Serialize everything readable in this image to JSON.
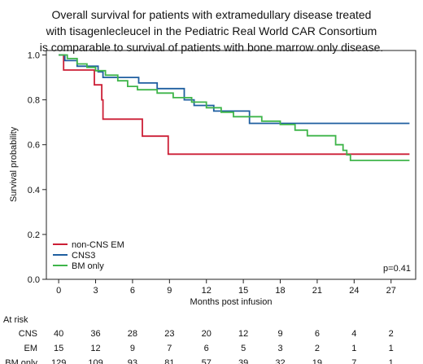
{
  "figure": {
    "title_lines": [
      "Overall survival for patients with extramedullary disease treated",
      "with tisagenlecleucel in the Pediatric Real World CAR Consortium",
      "is comparable to survival of patients with bone marrow only disease."
    ]
  },
  "chart_data": {
    "type": "line",
    "step": true,
    "xlabel": "Months post infusion",
    "ylabel": "Survival probability",
    "xlim": [
      -1,
      29
    ],
    "ylim": [
      0,
      1.02
    ],
    "xticks": [
      0,
      3,
      6,
      9,
      12,
      15,
      18,
      21,
      24,
      27
    ],
    "yticks": [
      0.0,
      0.2,
      0.4,
      0.6,
      0.8,
      1.0
    ],
    "annotation": "p=0.41",
    "legend_position": "bottom-left",
    "series": [
      {
        "name": "non-CNS EM",
        "color": "#cc1f36",
        "points": [
          [
            0,
            1.0
          ],
          [
            0.4,
            0.933
          ],
          [
            2.9,
            0.867
          ],
          [
            3.5,
            0.8
          ],
          [
            3.6,
            0.714
          ],
          [
            6.8,
            0.638
          ],
          [
            8.9,
            0.558
          ],
          [
            28.5,
            0.558
          ]
        ]
      },
      {
        "name": "CNS3",
        "color": "#1f5fa0",
        "points": [
          [
            0,
            1.0
          ],
          [
            0.5,
            0.975
          ],
          [
            1.5,
            0.95
          ],
          [
            3.2,
            0.925
          ],
          [
            3.6,
            0.9
          ],
          [
            6.5,
            0.875
          ],
          [
            8.0,
            0.85
          ],
          [
            10.2,
            0.8
          ],
          [
            11.0,
            0.775
          ],
          [
            12.6,
            0.75
          ],
          [
            15.5,
            0.695
          ],
          [
            28.5,
            0.695
          ]
        ]
      },
      {
        "name": "BM only",
        "color": "#3fb54a",
        "points": [
          [
            0,
            1.0
          ],
          [
            0.7,
            0.984
          ],
          [
            1.5,
            0.96
          ],
          [
            2.3,
            0.945
          ],
          [
            3.0,
            0.93
          ],
          [
            3.8,
            0.91
          ],
          [
            4.8,
            0.885
          ],
          [
            5.6,
            0.86
          ],
          [
            6.4,
            0.845
          ],
          [
            8.0,
            0.83
          ],
          [
            9.3,
            0.81
          ],
          [
            10.8,
            0.79
          ],
          [
            12.0,
            0.765
          ],
          [
            13.2,
            0.745
          ],
          [
            14.2,
            0.725
          ],
          [
            16.5,
            0.705
          ],
          [
            18.0,
            0.69
          ],
          [
            19.2,
            0.665
          ],
          [
            20.2,
            0.64
          ],
          [
            22.5,
            0.6
          ],
          [
            23.1,
            0.575
          ],
          [
            23.4,
            0.555
          ],
          [
            23.7,
            0.53
          ],
          [
            28.5,
            0.53
          ]
        ]
      }
    ],
    "at_risk": {
      "label": "At risk",
      "times": [
        0,
        3,
        6,
        9,
        12,
        15,
        18,
        21,
        24,
        27
      ],
      "rows": [
        {
          "group": "CNS",
          "values": [
            40,
            36,
            28,
            23,
            20,
            12,
            9,
            6,
            4,
            2
          ]
        },
        {
          "group": "EM",
          "values": [
            15,
            12,
            9,
            7,
            6,
            5,
            3,
            2,
            1,
            1
          ]
        },
        {
          "group": "BM only",
          "values": [
            129,
            109,
            93,
            81,
            57,
            39,
            32,
            19,
            7,
            1
          ]
        }
      ]
    }
  }
}
